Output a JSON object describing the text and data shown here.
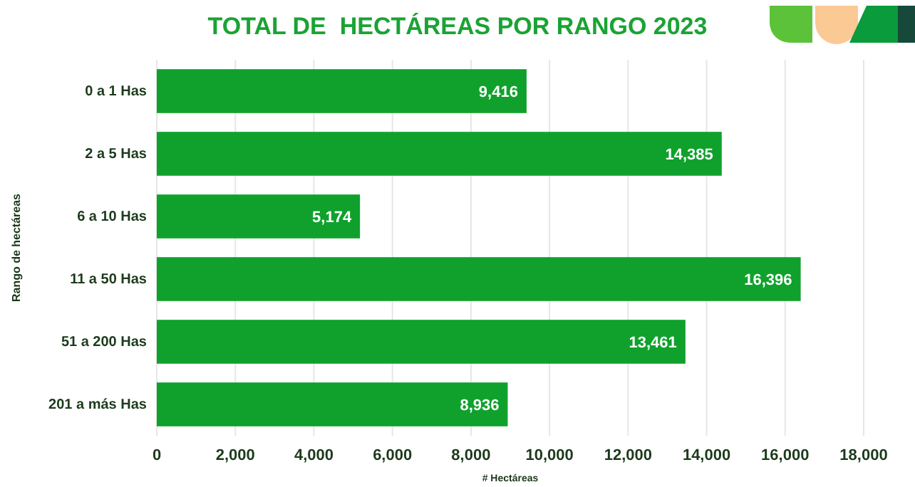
{
  "chart_data": {
    "type": "bar",
    "orientation": "horizontal",
    "title": "TOTAL DE  HECTÁREAS POR RANGO 2023",
    "xlabel": "# Hectáreas",
    "ylabel": "Rango de hectáreas",
    "categories": [
      "0 a 1 Has",
      "2 a 5 Has",
      "6 a 10 Has",
      "11 a 50 Has",
      "51 a 200 Has",
      "201 a más Has"
    ],
    "values": [
      9416,
      14385,
      5174,
      16396,
      13461,
      8936
    ],
    "value_labels": [
      "9,416",
      "14,385",
      "5,174",
      "16,396",
      "13,461",
      "8,936"
    ],
    "color": "#0fa12c",
    "xlim": [
      0,
      18000
    ],
    "xticks": [
      {
        "value": 0,
        "label": "0"
      },
      {
        "value": 2000,
        "label": "2,000"
      },
      {
        "value": 4000,
        "label": "4,000"
      },
      {
        "value": 6000,
        "label": "6,000"
      },
      {
        "value": 8000,
        "label": "8,000"
      },
      {
        "value": 10000,
        "label": "10,000"
      },
      {
        "value": 12000,
        "label": "12,000"
      },
      {
        "value": 14000,
        "label": "14,000"
      },
      {
        "value": 16000,
        "label": "16,000"
      },
      {
        "value": 18000,
        "label": "18,000"
      }
    ],
    "grid": "x"
  }
}
